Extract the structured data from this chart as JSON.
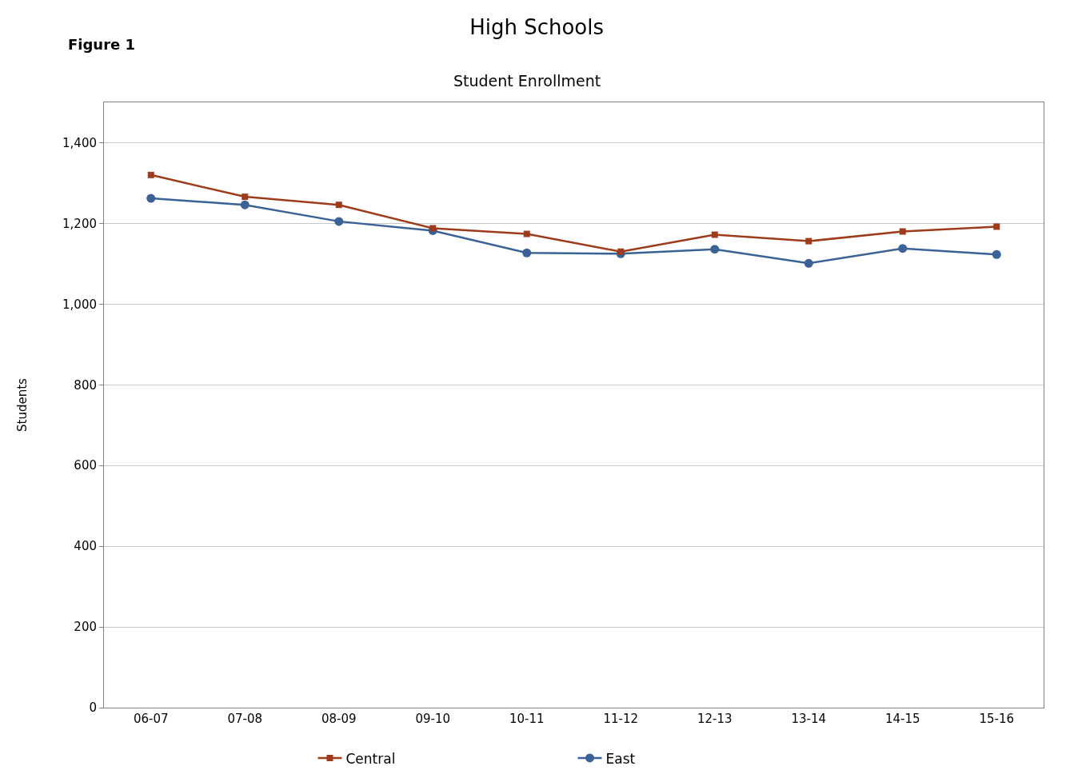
{
  "chart_data": {
    "type": "line",
    "title": "High Schools",
    "subtitle": "Student Enrollment",
    "ylabel": "Students",
    "annotations": [
      "Figure 1"
    ],
    "categories": [
      "06-07",
      "07-08",
      "08-09",
      "09-10",
      "10-11",
      "11-12",
      "12-13",
      "13-14",
      "14-15",
      "15-16"
    ],
    "series": [
      {
        "name": "Central",
        "color": "#9e3b1b",
        "marker": "square",
        "values": [
          1320,
          1266,
          1246,
          1188,
          1174,
          1130,
          1172,
          1156,
          1180,
          1192
        ]
      },
      {
        "name": "East",
        "color": "#3a6296",
        "marker": "circle",
        "values": [
          1262,
          1246,
          1205,
          1182,
          1127,
          1125,
          1136,
          1101,
          1138,
          1123
        ]
      }
    ],
    "ylim": [
      0,
      1500
    ],
    "yticks": [
      0,
      {
        "value": 200,
        "label": "200"
      },
      {
        "value": 400,
        "label": "400"
      },
      {
        "value": 600,
        "label": "600"
      },
      {
        "value": 800,
        "label": "800"
      },
      {
        "value": 1000,
        "label": "1,000"
      },
      {
        "value": 1200,
        "label": "1,200"
      },
      {
        "value": 1400,
        "label": "1,400"
      }
    ],
    "grid": "y",
    "legend": "bottom",
    "line_style": "solid"
  }
}
